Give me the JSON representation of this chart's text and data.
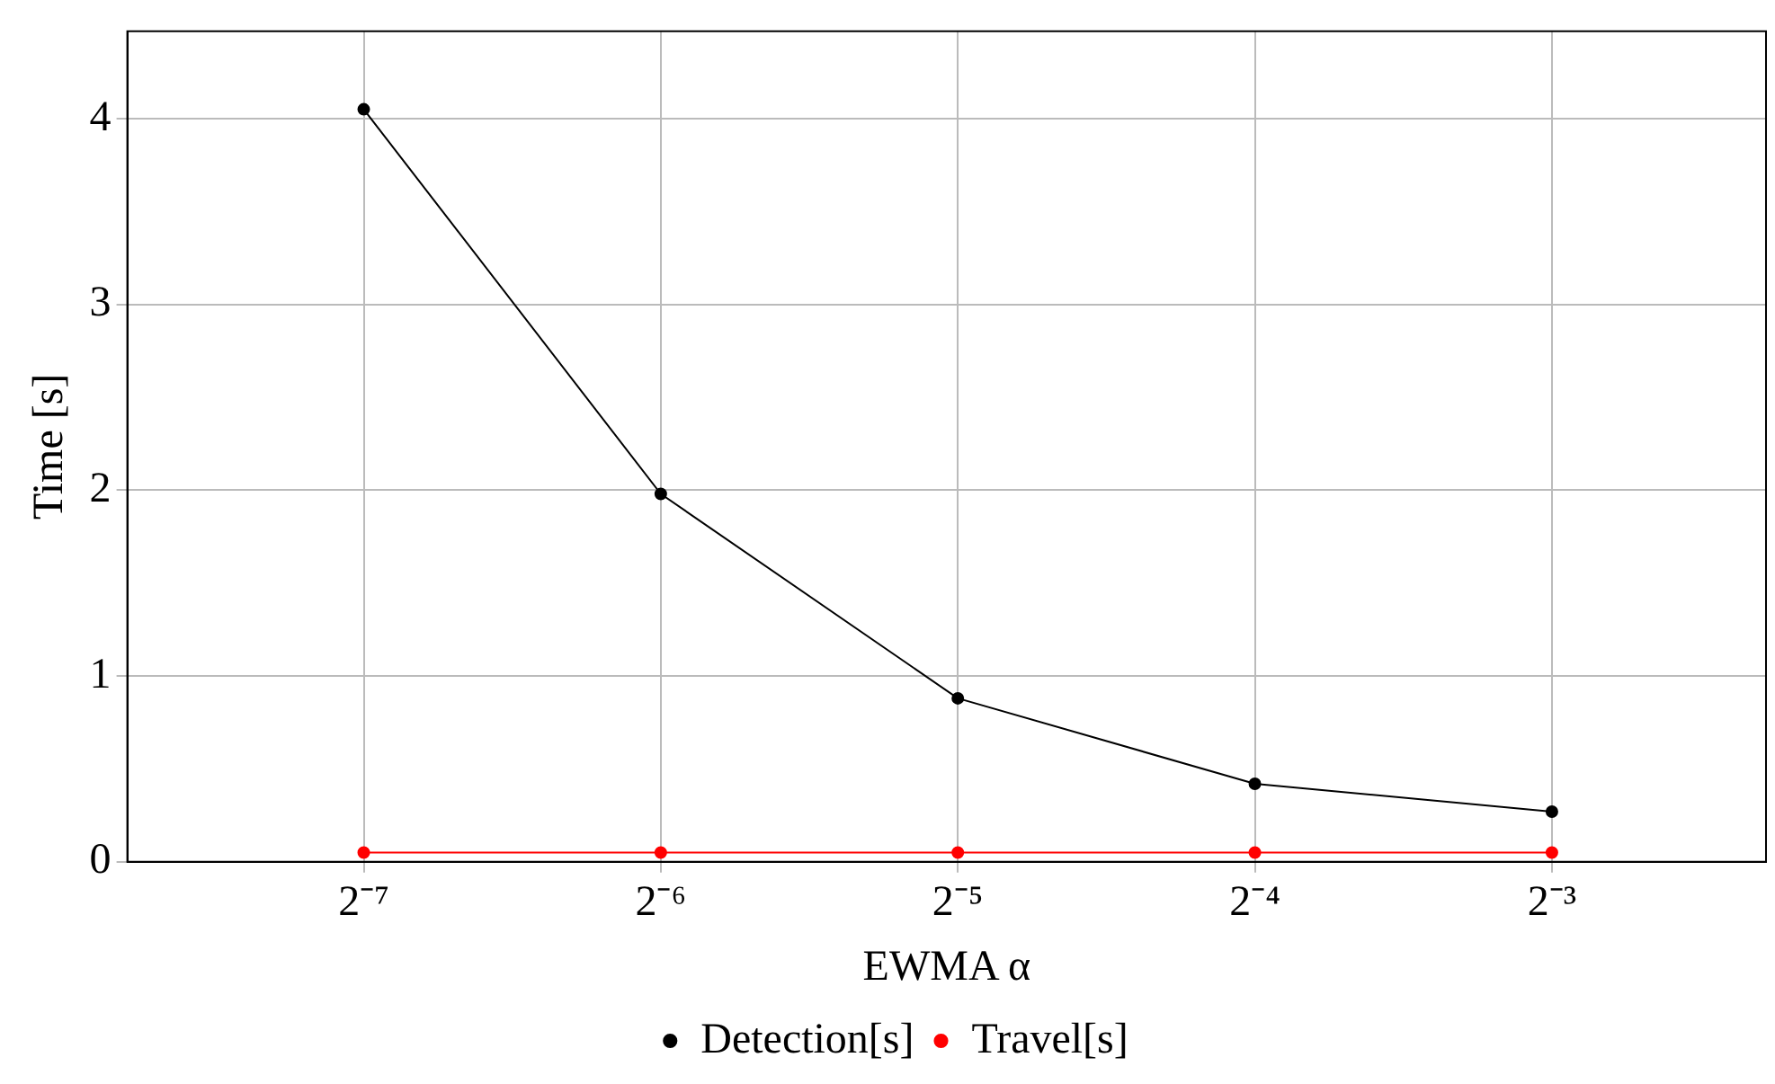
{
  "chart_data": {
    "type": "line",
    "xlabel": "EWMA α",
    "ylabel": "Time [s]",
    "x": [
      0.0078125,
      0.015625,
      0.03125,
      0.0625,
      0.125
    ],
    "series": [
      {
        "name": "Detection[s]",
        "color": "#000000",
        "values": [
          4.05,
          1.98,
          0.88,
          0.42,
          0.27
        ]
      },
      {
        "name": "Travel[s]",
        "color": "#ff0000",
        "values": [
          0.05,
          0.05,
          0.05,
          0.05,
          0.05
        ]
      }
    ],
    "log": "x",
    "xlim": [
      0.0045,
      0.206
    ],
    "xticks": [
      {
        "value": 0.0078125,
        "label": "2⁻⁷"
      },
      {
        "value": 0.015625,
        "label": "2⁻⁶"
      },
      {
        "value": 0.03125,
        "label": "2⁻⁵"
      },
      {
        "value": 0.0625,
        "label": "2⁻⁴"
      },
      {
        "value": 0.125,
        "label": "2⁻³"
      }
    ],
    "ylim": [
      0,
      4.47
    ],
    "yticks": [
      0,
      1,
      2,
      3,
      4
    ],
    "grid": true,
    "legend": "bottom",
    "marker": "circle",
    "line_style": "solid"
  }
}
